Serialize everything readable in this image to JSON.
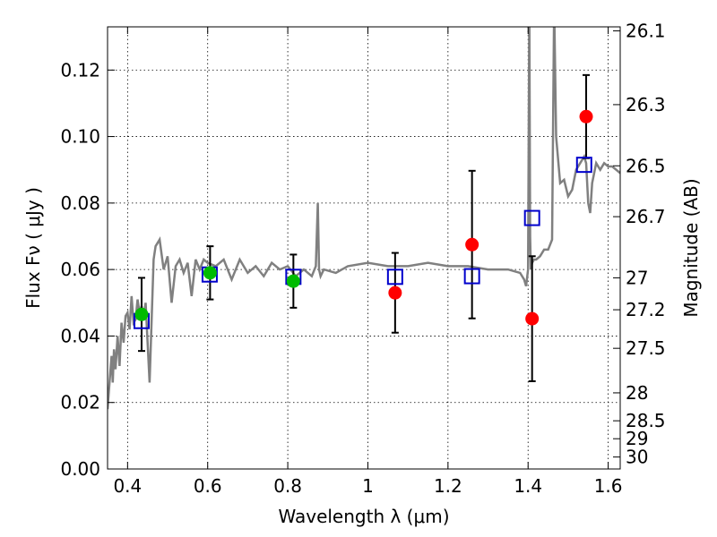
{
  "chart_data": {
    "type": "scatter",
    "title": "",
    "xlabel": "Wavelength  λ (μm)",
    "ylabel": "Flux  Fν  ( μJy )",
    "ylabel_right": "Magnitude (AB)",
    "xlim": [
      0.35,
      1.63
    ],
    "ylim": [
      0.0,
      0.133
    ],
    "xticks": [
      0.4,
      0.6,
      0.8,
      1.0,
      1.2,
      1.4,
      1.6
    ],
    "xtick_labels": [
      "0.4",
      "0.6",
      "0.8",
      "1",
      "1.2",
      "1.4",
      "1.6"
    ],
    "yticks": [
      0.0,
      0.02,
      0.04,
      0.06,
      0.08,
      0.1,
      0.12
    ],
    "ytick_labels": [
      "0.00",
      "0.02",
      "0.04",
      "0.06",
      "0.08",
      "0.10",
      "0.12"
    ],
    "right_ticks": [
      {
        "label": "26.1",
        "flux": 0.1318
      },
      {
        "label": "26.3",
        "flux": 0.1096
      },
      {
        "label": "26.5",
        "flux": 0.0912
      },
      {
        "label": "26.7",
        "flux": 0.0759
      },
      {
        "label": "27",
        "flux": 0.0575
      },
      {
        "label": "27.2",
        "flux": 0.0479
      },
      {
        "label": "27.5",
        "flux": 0.0363
      },
      {
        "label": "28",
        "flux": 0.0229
      },
      {
        "label": "28.5",
        "flux": 0.0145
      },
      {
        "label": "29",
        "flux": 0.0091
      },
      {
        "label": "30",
        "flux": 0.0036
      }
    ],
    "grid": true,
    "colors": {
      "model": "#808080",
      "model_points": "#0000cc",
      "green_points": "#00bb00",
      "red_points": "#ff0000",
      "errorbars": "#000000"
    },
    "model_spectrum": {
      "x": [
        0.35,
        0.355,
        0.36,
        0.363,
        0.366,
        0.37,
        0.375,
        0.38,
        0.385,
        0.39,
        0.395,
        0.4,
        0.405,
        0.41,
        0.415,
        0.42,
        0.425,
        0.43,
        0.435,
        0.44,
        0.445,
        0.45,
        0.455,
        0.46,
        0.465,
        0.47,
        0.48,
        0.49,
        0.5,
        0.51,
        0.52,
        0.53,
        0.54,
        0.55,
        0.56,
        0.57,
        0.58,
        0.59,
        0.6,
        0.62,
        0.64,
        0.66,
        0.68,
        0.7,
        0.72,
        0.74,
        0.76,
        0.78,
        0.8,
        0.82,
        0.84,
        0.86,
        0.87,
        0.875,
        0.878,
        0.882,
        0.89,
        0.92,
        0.95,
        1.0,
        1.05,
        1.1,
        1.15,
        1.2,
        1.25,
        1.3,
        1.35,
        1.38,
        1.39,
        1.395,
        1.4,
        1.403,
        1.405,
        1.407,
        1.41,
        1.415,
        1.42,
        1.43,
        1.44,
        1.45,
        1.46,
        1.465,
        1.47,
        1.48,
        1.49,
        1.5,
        1.51,
        1.52,
        1.53,
        1.54,
        1.545,
        1.55,
        1.555,
        1.56,
        1.57,
        1.58,
        1.59,
        1.6,
        1.61,
        1.63
      ],
      "y": [
        0.018,
        0.026,
        0.034,
        0.026,
        0.036,
        0.03,
        0.04,
        0.031,
        0.044,
        0.038,
        0.046,
        0.047,
        0.042,
        0.052,
        0.044,
        0.045,
        0.051,
        0.047,
        0.049,
        0.046,
        0.05,
        0.038,
        0.026,
        0.045,
        0.063,
        0.067,
        0.069,
        0.06,
        0.064,
        0.05,
        0.061,
        0.063,
        0.059,
        0.062,
        0.052,
        0.063,
        0.06,
        0.063,
        0.062,
        0.061,
        0.063,
        0.057,
        0.063,
        0.059,
        0.061,
        0.058,
        0.062,
        0.06,
        0.061,
        0.058,
        0.06,
        0.058,
        0.061,
        0.08,
        0.06,
        0.058,
        0.06,
        0.059,
        0.061,
        0.062,
        0.061,
        0.061,
        0.062,
        0.061,
        0.061,
        0.06,
        0.06,
        0.059,
        0.057,
        0.055,
        0.06,
        0.14,
        0.07,
        0.06,
        0.062,
        0.063,
        0.063,
        0.064,
        0.066,
        0.066,
        0.069,
        0.14,
        0.1,
        0.086,
        0.087,
        0.082,
        0.084,
        0.09,
        0.092,
        0.094,
        0.092,
        0.08,
        0.077,
        0.086,
        0.092,
        0.09,
        0.092,
        0.091,
        0.091,
        0.089
      ]
    },
    "model_points": [
      {
        "x": 0.435,
        "y": 0.0445
      },
      {
        "x": 0.605,
        "y": 0.0585
      },
      {
        "x": 0.814,
        "y": 0.0578
      },
      {
        "x": 1.068,
        "y": 0.0578
      },
      {
        "x": 1.26,
        "y": 0.058
      },
      {
        "x": 1.41,
        "y": 0.0755
      },
      {
        "x": 1.54,
        "y": 0.0915
      }
    ],
    "green_points": [
      {
        "x": 0.435,
        "y": 0.0465,
        "yerr": 0.011
      },
      {
        "x": 0.606,
        "y": 0.059,
        "yerr": 0.008
      },
      {
        "x": 0.814,
        "y": 0.0565,
        "yerr": 0.008
      }
    ],
    "red_points": [
      {
        "x": 1.068,
        "y": 0.053,
        "yerr": 0.012
      },
      {
        "x": 1.26,
        "y": 0.0675,
        "yerr": 0.0222
      },
      {
        "x": 1.41,
        "y": 0.0452,
        "yerr": 0.0188
      },
      {
        "x": 1.545,
        "y": 0.106,
        "yerr": 0.0125
      }
    ]
  }
}
